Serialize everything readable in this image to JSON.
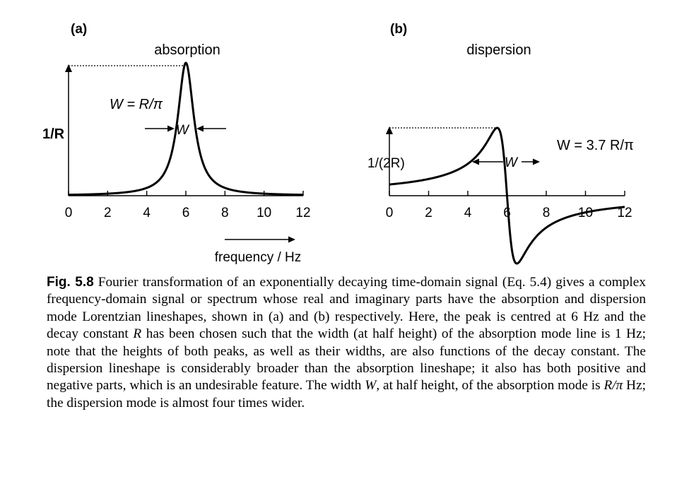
{
  "chart_data": [
    {
      "type": "line",
      "panel": "(a)",
      "title": "absorption",
      "series": [
        {
          "name": "",
          "color": "#000000",
          "x0": 6,
          "R": 3.14159,
          "mode": "absorption"
        }
      ],
      "x_ticks": [
        0,
        2,
        4,
        6,
        8,
        10,
        12
      ],
      "xlim": [
        0,
        12
      ],
      "xlabel": "frequency / Hz",
      "annotations": {
        "peak_height": "1/R",
        "width_formula": "W = R/π",
        "width_marker": "W"
      }
    },
    {
      "type": "line",
      "panel": "(b)",
      "title": "dispersion",
      "series": [
        {
          "name": "",
          "color": "#000000",
          "x0": 6,
          "R": 3.14159,
          "mode": "dispersion"
        }
      ],
      "x_ticks": [
        0,
        2,
        4,
        6,
        8,
        10,
        12
      ],
      "xlim": [
        0,
        12
      ],
      "annotations": {
        "peak_height": "1/(2R)",
        "width_formula": "W = 3.7 R/π",
        "width_marker": "W"
      }
    }
  ],
  "caption": {
    "label": "Fig. 5.8",
    "p1": " Fourier transformation of an exponentially decaying time-domain signal (Eq. 5.4) gives a complex frequency-domain signal or spectrum whose real and imaginary parts have the absorption and dispersion mode Lorentzian lineshapes, shown in (a) and (b) respectively. Here, the peak is centred at 6 Hz and the decay constant ",
    "R1": "R",
    "p2": " has been chosen such that the width (at half height) of the absorption mode line is 1 Hz; note that the heights of both peaks, as well as their widths, are also functions of the decay constant. The dispersion lineshape is considerably broader than the absorption lineshape; it also has both positive and negative parts, which is an undesirable feature. The width ",
    "W": "W",
    "p3": ", at half height, of the absorption mode is ",
    "Rpi": "R/π",
    "p4": " Hz; the dispersion mode is almost four times wider."
  }
}
